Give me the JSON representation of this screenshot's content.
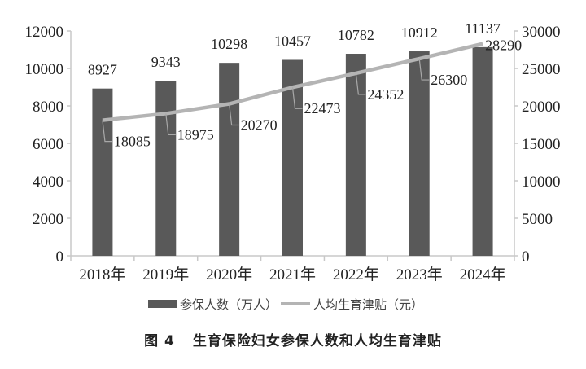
{
  "chart_data": {
    "type": "bar+line",
    "title": "生育保险妇女参保人数和人均生育津贴",
    "figure_label": "图 4",
    "categories": [
      "2018年",
      "2019年",
      "2020年",
      "2021年",
      "2022年",
      "2023年",
      "2024年"
    ],
    "series": [
      {
        "name": "参保人数（万人）",
        "type": "bar",
        "axis": "left",
        "color": "#595959",
        "values": [
          8927,
          9343,
          10298,
          10457,
          10782,
          10912,
          11137
        ]
      },
      {
        "name": "人均生育津贴（元）",
        "type": "line",
        "axis": "right",
        "color": "#b4b4b4",
        "values": [
          18085,
          18975,
          20270,
          22473,
          24352,
          26300,
          28290
        ]
      }
    ],
    "left_axis": {
      "ylim": [
        0,
        12000
      ],
      "ticks": [
        0,
        2000,
        4000,
        6000,
        8000,
        10000,
        12000
      ]
    },
    "right_axis": {
      "ylim": [
        0,
        30000
      ],
      "ticks": [
        0,
        5000,
        10000,
        15000,
        20000,
        25000,
        30000
      ]
    },
    "grid": false,
    "legend_position": "bottom"
  },
  "legend": {
    "bar_label": "参保人数（万人）",
    "line_label": "人均生育津贴（元）"
  },
  "caption": {
    "number": "图 4",
    "text": "生育保险妇女参保人数和人均生育津贴"
  }
}
